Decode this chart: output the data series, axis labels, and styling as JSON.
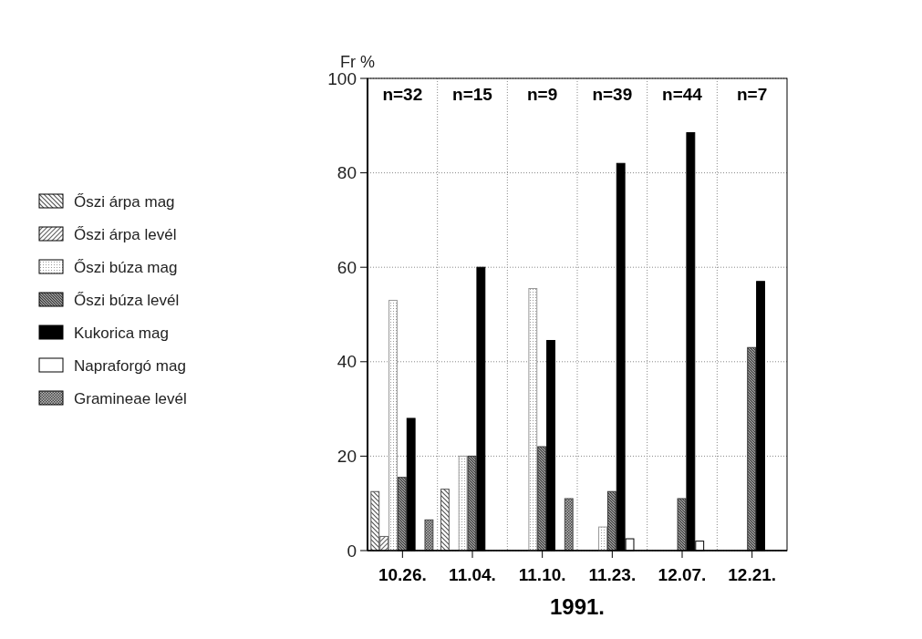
{
  "chart_data": {
    "type": "bar",
    "ylabel": "Fr %",
    "xlabel": "1991.",
    "categories": [
      "10.26.",
      "11.04.",
      "11.10.",
      "11.23.",
      "12.07.",
      "12.21."
    ],
    "series": [
      {
        "name": "Őszi árpa mag",
        "color": "#555555",
        "values": [
          12.5,
          13,
          0,
          0,
          0,
          0
        ]
      },
      {
        "name": "Őszi árpa levél",
        "color": "#666666",
        "values": [
          3,
          0,
          0,
          0,
          0,
          0
        ]
      },
      {
        "name": "Őszi búza mag",
        "color": "#999999",
        "values": [
          53,
          20,
          55.5,
          5,
          0,
          0
        ]
      },
      {
        "name": "Őszi búza levél",
        "color": "#333333",
        "values": [
          15.5,
          20,
          22,
          12.5,
          11,
          43
        ]
      },
      {
        "name": "Kukorica mag",
        "color": "#000000",
        "values": [
          28,
          60,
          44.5,
          82,
          88.5,
          57
        ]
      },
      {
        "name": "Napraforgó mag",
        "color": "#ffffff",
        "values": [
          0,
          0,
          0,
          2.5,
          2,
          0
        ]
      },
      {
        "name": "Gramineae levél",
        "color": "#444444",
        "values": [
          6.5,
          0,
          11,
          0,
          0,
          0
        ]
      }
    ],
    "ylim": [
      0,
      100
    ],
    "yticks": [
      0,
      20,
      40,
      60,
      80,
      100
    ],
    "grid": true,
    "legend": "left",
    "annotations": [
      "n=32",
      "n=15",
      "n=9",
      "n=39",
      "n=44",
      "n=7"
    ]
  }
}
